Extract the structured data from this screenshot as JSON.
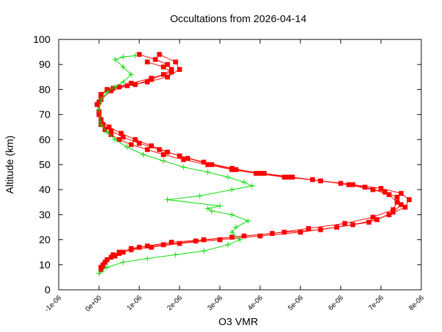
{
  "chart_data": {
    "type": "line",
    "title": "Occultations from 2026-04-14",
    "xlabel": "O3 VMR",
    "ylabel": "Altitude (km)",
    "xlim": [
      -1e-06,
      8e-06
    ],
    "ylim": [
      0,
      100
    ],
    "x_ticks": [
      -1e-06,
      0,
      1e-06,
      2e-06,
      3e-06,
      4e-06,
      5e-06,
      6e-06,
      7e-06,
      8e-06
    ],
    "x_tick_labels": [
      "-1e-06",
      "0e+00",
      "1e-06",
      "2e-06",
      "3e-06",
      "4e-06",
      "5e-06",
      "6e-06",
      "7e-06",
      "8e-06"
    ],
    "y_ticks": [
      0,
      10,
      20,
      30,
      40,
      50,
      60,
      70,
      80,
      90,
      100
    ],
    "y_tick_labels": [
      "0",
      "10",
      "20",
      "30",
      "40",
      "50",
      "60",
      "70",
      "80",
      "90",
      "100"
    ],
    "grid": false,
    "legend": "none",
    "series": [
      {
        "color": "#ff0000",
        "marker": "square",
        "x": [
          5e-08,
          1e-07,
          2e-07,
          3.5e-07,
          5e-07,
          8e-07,
          1.2e-06,
          1.8e-06,
          2.6e-06,
          3.6e-06,
          4.6e-06,
          5.5e-06,
          6.3e-06,
          6.9e-06,
          7.3e-06,
          7.5e-06,
          7.4e-06,
          7.1e-06,
          6.6e-06,
          6e-06,
          5.3e-06,
          4.6e-06,
          3.9e-06,
          3.3e-06,
          2.7e-06,
          2.1e-06,
          1.6e-06,
          1.2e-06,
          8e-07,
          5e-07,
          3e-07,
          1.5e-07,
          5e-08,
          0.0,
          0.0,
          5e-08,
          2e-07,
          5e-07,
          9e-07,
          1.3e-06,
          1.6e-06,
          1.8e-06,
          1.7e-06,
          1.4e-06,
          1e-06
        ],
        "y": [
          8,
          10,
          12,
          14,
          15,
          16.5,
          17.5,
          19,
          20,
          21.5,
          23,
          24,
          26,
          28,
          31,
          34,
          37,
          39,
          41,
          42.5,
          44,
          45,
          46.5,
          48,
          50,
          52,
          54,
          56,
          58,
          60,
          62,
          64,
          66,
          70,
          75,
          78,
          80,
          81,
          82,
          84,
          86,
          88,
          90,
          92,
          94
        ]
      },
      {
        "color": "#ff0000",
        "marker": "square",
        "x": [
          5e-08,
          1.5e-07,
          3e-07,
          5e-07,
          8e-07,
          1.3e-06,
          2e-06,
          3e-06,
          4e-06,
          5e-06,
          5.9e-06,
          6.7e-06,
          7.2e-06,
          7.6e-06,
          7.7e-06,
          7.5e-06,
          7e-06,
          6.3e-06,
          5.5e-06,
          4.7e-06,
          4e-06,
          3.3e-06,
          2.6e-06,
          2e-06,
          1.5e-06,
          1e-06,
          6e-07,
          3e-07,
          1e-07,
          0.0,
          5e-08,
          3e-07,
          7e-07,
          1.2e-06,
          1.7e-06,
          2e-06,
          1.9e-06,
          1.5e-06
        ],
        "y": [
          9,
          11,
          13,
          14.5,
          16,
          17,
          18.5,
          20,
          21.5,
          23,
          25,
          27,
          30,
          33,
          36,
          38.5,
          40.5,
          42,
          43.5,
          45,
          46.5,
          48.5,
          51,
          53.5,
          56,
          58.5,
          61,
          63.5,
          66,
          71,
          76,
          79.5,
          81.5,
          83,
          85,
          88,
          91,
          94
        ]
      },
      {
        "color": "#ff0000",
        "marker": "square",
        "x": [
          1e-07,
          2e-07,
          4e-07,
          6e-07,
          1e-06,
          1.6e-06,
          2.4e-06,
          3.3e-06,
          4.3e-06,
          5.2e-06,
          6.1e-06,
          6.8e-06,
          7.3e-06,
          7.4e-06,
          7.2e-06,
          6.8e-06,
          6.2e-06,
          5.5e-06,
          4.8e-06,
          4.1e-06,
          3.4e-06,
          2.8e-06,
          2.2e-06,
          1.7e-06,
          1.3e-06,
          9e-07,
          5.5e-07,
          2.5e-07,
          5e-08,
          -5e-08,
          5e-08,
          3.5e-07,
          8e-07,
          1.3e-06,
          1.8e-06,
          1.6e-06,
          1.2e-06
        ],
        "y": [
          9.5,
          12,
          13.5,
          15,
          17,
          18,
          19.5,
          21,
          22.5,
          24.5,
          26.5,
          29,
          32,
          35,
          38,
          40,
          42,
          43.5,
          45,
          46.5,
          48,
          50,
          52.5,
          55,
          57.5,
          60,
          62.5,
          65,
          68,
          74,
          78,
          80.5,
          82.5,
          84.5,
          87,
          89,
          91
        ]
      },
      {
        "color": "#00dd00",
        "marker": "plus",
        "x": [
          0.0,
          2e-07,
          6e-07,
          1.2e-06,
          1.9e-06,
          2.6e-06,
          3.2e-06,
          3.5e-06,
          3.3e-06,
          3.4e-06,
          3.7e-06,
          3.3e-06,
          2.8e-06,
          2.7e-06,
          3e-06,
          1.7e-06,
          2.5e-06,
          3.3e-06,
          3.8e-06,
          3.6e-06,
          3.2e-06,
          2.7e-06,
          2.1e-06,
          1.6e-06,
          1.1e-06,
          7e-07,
          4e-07,
          2e-07,
          5e-08,
          0.0,
          5e-08,
          2e-07,
          4e-07,
          6e-07,
          8e-07,
          6e-07,
          4e-07,
          6e-07,
          9e-07
        ],
        "y": [
          6.5,
          9,
          11,
          12.5,
          14,
          15.5,
          18,
          20,
          23,
          25,
          27.5,
          30,
          31.5,
          32.5,
          33.5,
          36,
          37.5,
          40,
          41.5,
          43,
          45,
          47,
          49,
          51.5,
          54,
          57,
          60,
          63,
          66,
          72,
          76,
          79,
          81,
          83,
          86,
          89,
          92,
          93,
          93.5
        ]
      }
    ]
  }
}
